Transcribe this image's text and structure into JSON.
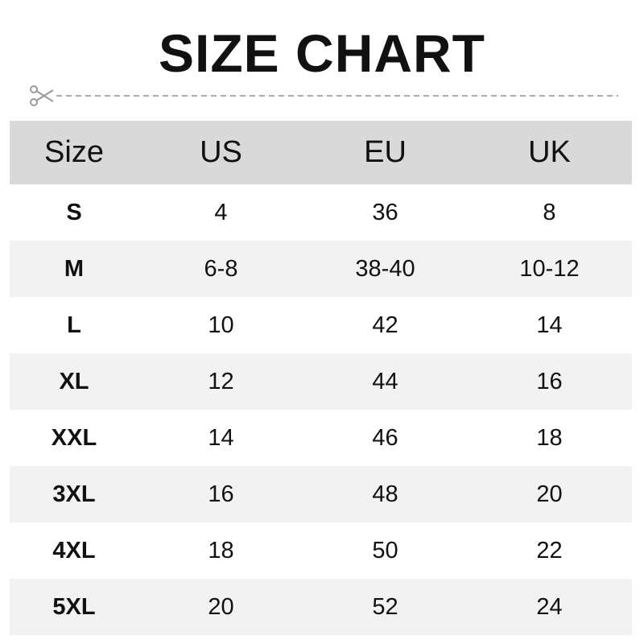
{
  "title": "SIZE CHART",
  "cut_line_icon": "scissors-icon",
  "colors": {
    "header_bg": "#d9d9d9",
    "alt_row_bg": "#f2f2f2",
    "text": "#111111",
    "cut_line": "#999999"
  },
  "table": {
    "headers": [
      "Size",
      "US",
      "EU",
      "UK"
    ],
    "rows": [
      [
        "S",
        "4",
        "36",
        "8"
      ],
      [
        "M",
        "6-8",
        "38-40",
        "10-12"
      ],
      [
        "L",
        "10",
        "42",
        "14"
      ],
      [
        "XL",
        "12",
        "44",
        "16"
      ],
      [
        "XXL",
        "14",
        "46",
        "18"
      ],
      [
        "3XL",
        "16",
        "48",
        "20"
      ],
      [
        "4XL",
        "18",
        "50",
        "22"
      ],
      [
        "5XL",
        "20",
        "52",
        "24"
      ]
    ]
  }
}
